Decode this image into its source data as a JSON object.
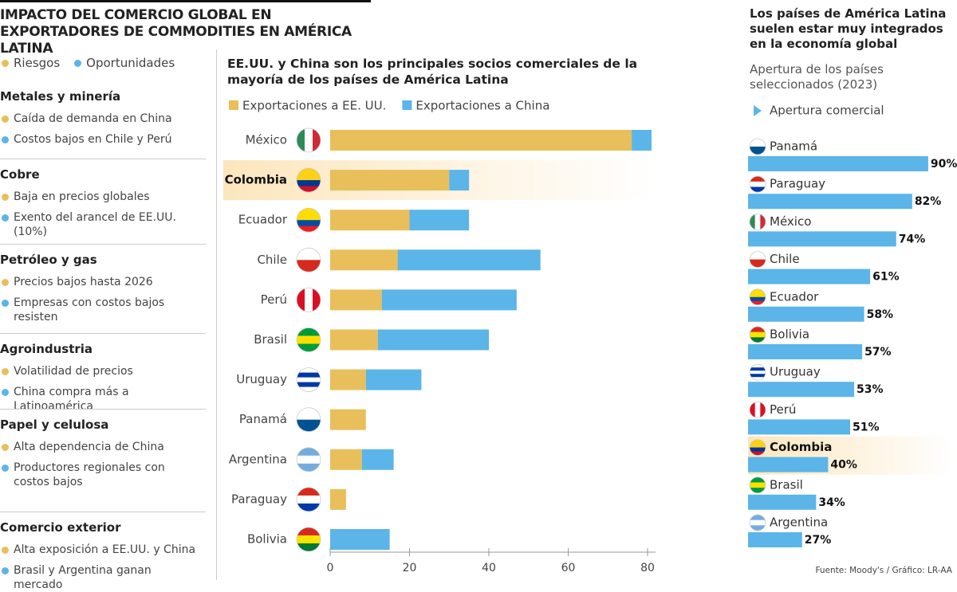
{
  "title": "IMPACTO DEL COMERCIO GLOBAL EN EXPORTADORES DE COMMODITIES EN AMÉRICA LATINA",
  "legend": [
    {
      "label": "Riesgos",
      "color": "#e8bf5a"
    },
    {
      "label": "Oportunidades",
      "color": "#5bb5e8"
    }
  ],
  "sectors": [
    {
      "name": "Metales y minería",
      "items": [
        {
          "text": "Caída de demanda en China",
          "color": "#e8bf5a"
        },
        {
          "text": "Costos bajos en Chile y Perú",
          "color": "#5bb5e8"
        }
      ]
    },
    {
      "name": "Cobre",
      "items": [
        {
          "text": "Baja en precios globales",
          "color": "#e8bf5a"
        },
        {
          "text": "Exento del arancel de EE.UU. (10%)",
          "color": "#5bb5e8"
        }
      ]
    },
    {
      "name": "Petróleo y gas",
      "items": [
        {
          "text": "Precios bajos hasta 2026",
          "color": "#e8bf5a"
        },
        {
          "text": "Empresas con costos bajos resisten",
          "color": "#5bb5e8"
        }
      ]
    },
    {
      "name": "Agroindustria",
      "items": [
        {
          "text": "Volatilidad de precios",
          "color": "#e8bf5a"
        },
        {
          "text": "China compra más a Latinoamérica",
          "color": "#5bb5e8"
        }
      ]
    },
    {
      "name": "Papel y celulosa",
      "items": [
        {
          "text": "Alta dependencia de China",
          "color": "#e8bf5a"
        },
        {
          "text": "Productores regionales con costos bajos",
          "color": "#5bb5e8"
        }
      ]
    },
    {
      "name": "Comercio exterior",
      "items": [
        {
          "text": "Alta exposición a EE.UU. y China",
          "color": "#e8bf5a"
        },
        {
          "text": "Brasil y Argentina ganan mercado",
          "color": "#5bb5e8"
        }
      ]
    }
  ],
  "chart_data": [
    {
      "type": "stacked-bar",
      "title": "EE.UU. y China son los principales socios comerciales de la mayoría de los países de América Latina",
      "categories": [
        "México",
        "Colombia",
        "Ecuador",
        "Chile",
        "Perú",
        "Brasil",
        "Uruguay",
        "Panamá",
        "Argentina",
        "Paraguay",
        "Bolivia"
      ],
      "series": [
        {
          "name": "Exportaciones a EE. UU.",
          "color": "#e8bf5a",
          "values": [
            76,
            30,
            20,
            17,
            13,
            12,
            9,
            9,
            8,
            4,
            0
          ]
        },
        {
          "name": "Exportaciones a China",
          "color": "#5bb5e8",
          "values": [
            5,
            5,
            15,
            36,
            34,
            28,
            14,
            0,
            8,
            0,
            15
          ]
        }
      ],
      "xlim": [
        0,
        82
      ],
      "xticks": [
        0,
        20,
        40,
        60,
        80
      ],
      "highlight": "Colombia"
    },
    {
      "type": "bar",
      "title": "Los países de América Latina suelen estar muy integrados en la economía global",
      "subtitle": "Apertura de los países seleccionados (2023)",
      "categories": [
        "Panamá",
        "Paraguay",
        "México",
        "Chile",
        "Ecuador",
        "Bolivia",
        "Uruguay",
        "Perú",
        "Colombia",
        "Brasil",
        "Argentina"
      ],
      "series": [
        {
          "name": "Apertura comercial",
          "color": "#5bb5e8",
          "values": [
            90,
            82,
            74,
            61,
            58,
            57,
            53,
            51,
            40,
            34,
            27
          ],
          "value_labels": [
            "90%",
            "82%",
            "74%",
            "61%",
            "58%",
            "57%",
            "53%",
            "51%",
            "40%",
            "34%",
            "27%"
          ]
        }
      ],
      "highlight": "Colombia"
    }
  ],
  "source": "Fuente: Moody's / Gráfico: LR-AA"
}
